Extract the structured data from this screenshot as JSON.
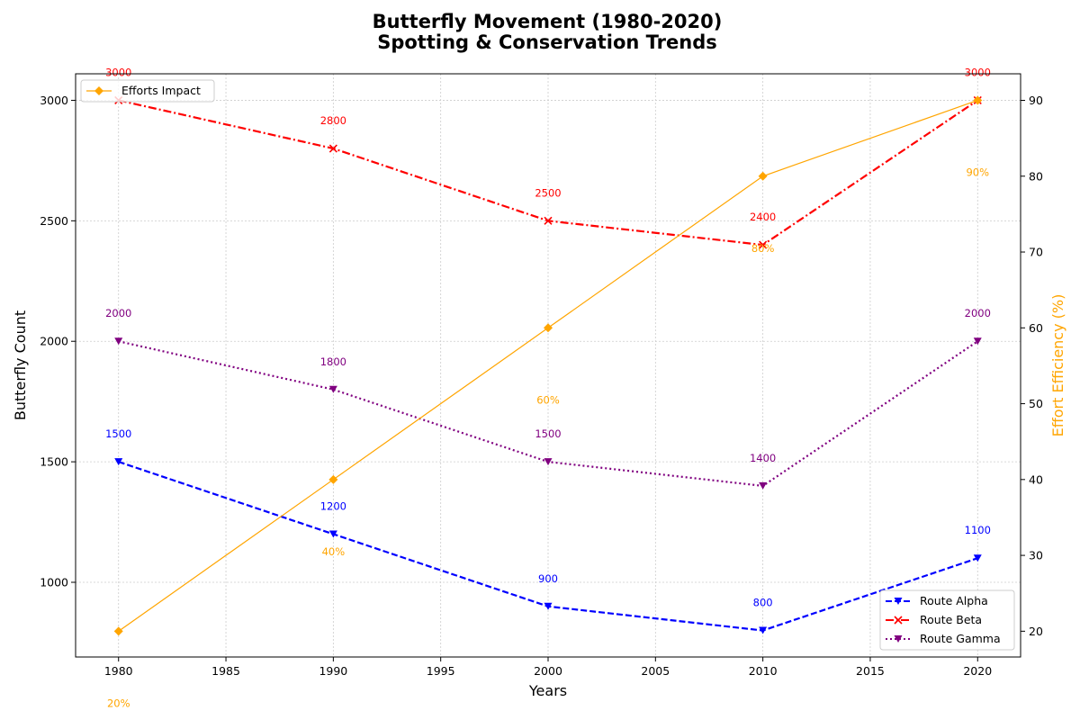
{
  "chart_data": {
    "type": "line",
    "title_line1": "Butterfly Movement (1980-2020)",
    "title_line2": "Spotting & Conservation Trends",
    "xlabel": "Years",
    "ylabel": "Butterfly Count",
    "y2label": "Effort Efficiency (%)",
    "xlim": [
      1978,
      2022
    ],
    "ylim": [
      690,
      3110
    ],
    "y2lim": [
      16.6,
      93.5
    ],
    "x_ticks": [
      1980,
      1985,
      1990,
      1995,
      2000,
      2005,
      2010,
      2015,
      2020
    ],
    "y_ticks": [
      1000,
      1500,
      2000,
      2500,
      3000
    ],
    "y2_ticks": [
      20,
      30,
      40,
      50,
      60,
      70,
      80,
      90
    ],
    "grid": true,
    "x": [
      1980,
      1990,
      2000,
      2010,
      2020
    ],
    "series": [
      {
        "name": "Route Alpha",
        "axis": "left",
        "values": [
          1500,
          1200,
          900,
          800,
          1100
        ],
        "labels": [
          "1500",
          "1200",
          "900",
          "800",
          "1100"
        ],
        "color": "#0000ff",
        "dash": "dashed",
        "marker": "triangle-down"
      },
      {
        "name": "Route Beta",
        "axis": "left",
        "values": [
          3000,
          2800,
          2500,
          2400,
          3000
        ],
        "labels": [
          "3000",
          "2800",
          "2500",
          "2400",
          "3000"
        ],
        "color": "#ff0000",
        "dash": "dashdot",
        "marker": "x"
      },
      {
        "name": "Route Gamma",
        "axis": "left",
        "values": [
          2000,
          1800,
          1500,
          1400,
          2000
        ],
        "labels": [
          "2000",
          "1800",
          "1500",
          "1400",
          "2000"
        ],
        "color": "#800080",
        "dash": "dotted",
        "marker": "triangle-down"
      },
      {
        "name": "Efforts Impact",
        "axis": "right",
        "values": [
          20,
          40,
          60,
          80,
          90
        ],
        "labels": [
          "20%",
          "40%",
          "60%",
          "80%",
          "90%"
        ],
        "color": "#ffa500",
        "dash": "solid",
        "marker": "diamond"
      }
    ],
    "legend_main_placement": "lower-right",
    "legend_secondary_placement": "upper-left"
  }
}
